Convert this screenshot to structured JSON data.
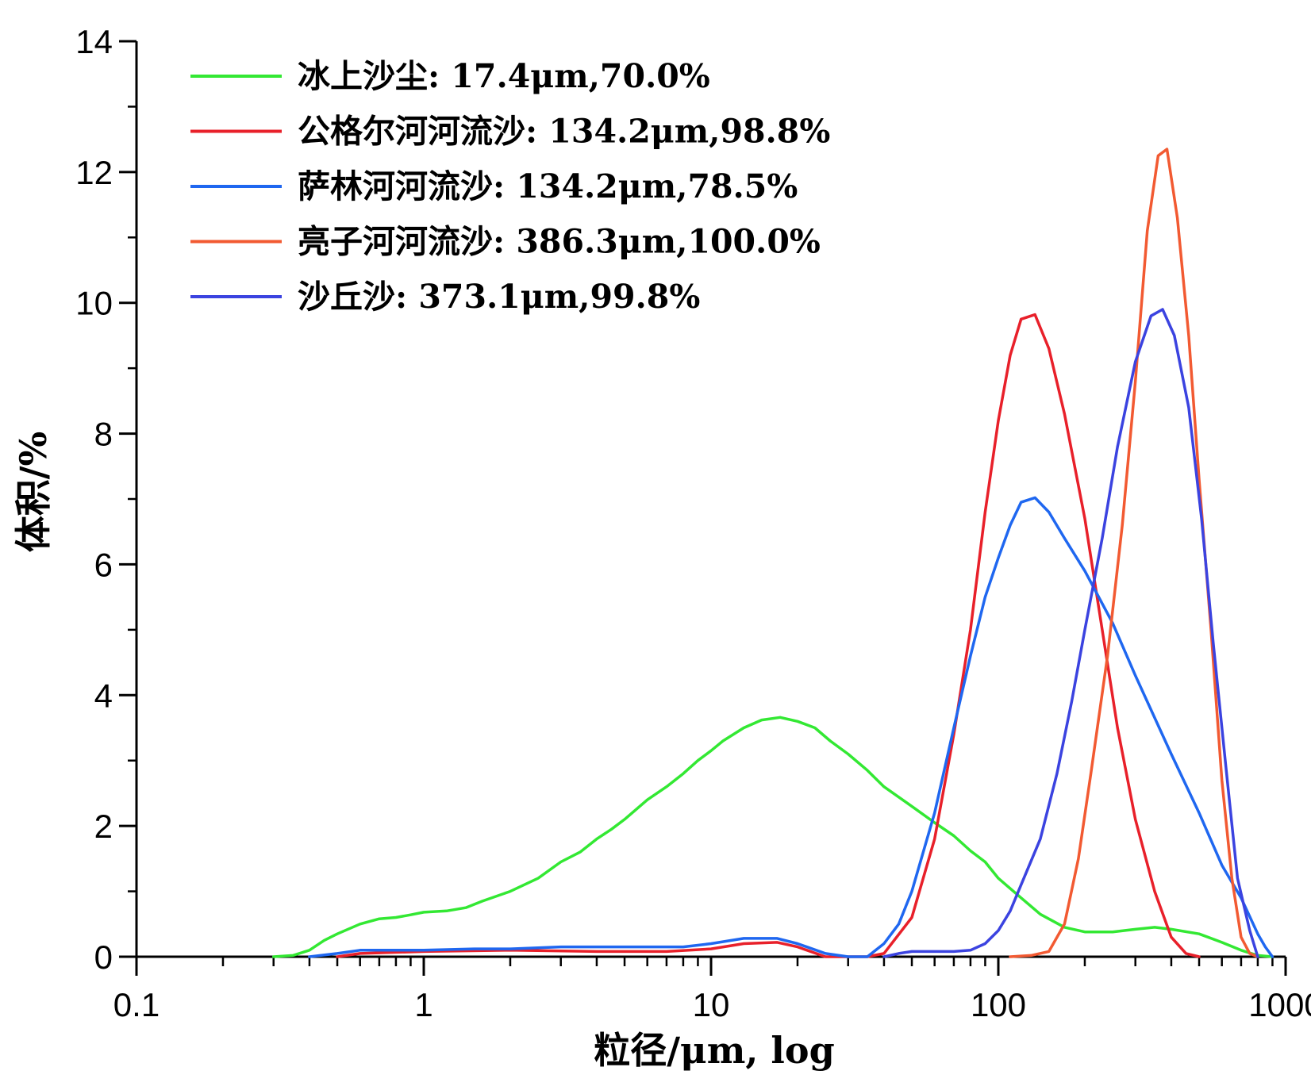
{
  "chart_data": {
    "type": "line",
    "xscale": "log",
    "xlim": [
      0.1,
      1000
    ],
    "ylim": [
      0,
      14
    ],
    "xlabel": "粒径/μm, log",
    "ylabel": "体积/%",
    "xticks": [
      {
        "value": 0.1,
        "label": "0.1"
      },
      {
        "value": 1,
        "label": "1"
      },
      {
        "value": 10,
        "label": "10"
      },
      {
        "value": 100,
        "label": "100"
      },
      {
        "value": 1000,
        "label": "1000"
      }
    ],
    "yticks": [
      {
        "value": 0,
        "label": "0"
      },
      {
        "value": 2,
        "label": "2"
      },
      {
        "value": 4,
        "label": "4"
      },
      {
        "value": 6,
        "label": "6"
      },
      {
        "value": 8,
        "label": "8"
      },
      {
        "value": 10,
        "label": "10"
      },
      {
        "value": 12,
        "label": "12"
      },
      {
        "value": 14,
        "label": "14"
      }
    ],
    "legend_position": "top-left",
    "series": [
      {
        "name": "冰上沙尘: 17.4μm,70.0%",
        "color": "#33e833",
        "points": [
          [
            0.3,
            0
          ],
          [
            0.35,
            0.02
          ],
          [
            0.4,
            0.1
          ],
          [
            0.45,
            0.25
          ],
          [
            0.5,
            0.35
          ],
          [
            0.6,
            0.5
          ],
          [
            0.7,
            0.58
          ],
          [
            0.8,
            0.6
          ],
          [
            0.9,
            0.64
          ],
          [
            1.0,
            0.68
          ],
          [
            1.2,
            0.7
          ],
          [
            1.4,
            0.75
          ],
          [
            1.6,
            0.85
          ],
          [
            2.0,
            1.0
          ],
          [
            2.5,
            1.2
          ],
          [
            3.0,
            1.45
          ],
          [
            3.5,
            1.6
          ],
          [
            4.0,
            1.8
          ],
          [
            4.5,
            1.95
          ],
          [
            5.0,
            2.1
          ],
          [
            6.0,
            2.4
          ],
          [
            7.0,
            2.6
          ],
          [
            8.0,
            2.8
          ],
          [
            9.0,
            3.0
          ],
          [
            10.0,
            3.15
          ],
          [
            11.0,
            3.3
          ],
          [
            13.0,
            3.5
          ],
          [
            15.0,
            3.62
          ],
          [
            17.4,
            3.66
          ],
          [
            20.0,
            3.6
          ],
          [
            23.0,
            3.5
          ],
          [
            26.0,
            3.3
          ],
          [
            30.0,
            3.1
          ],
          [
            35.0,
            2.85
          ],
          [
            40.0,
            2.6
          ],
          [
            50.0,
            2.3
          ],
          [
            60.0,
            2.05
          ],
          [
            70.0,
            1.85
          ],
          [
            80.0,
            1.62
          ],
          [
            90.0,
            1.45
          ],
          [
            100.0,
            1.2
          ],
          [
            120.0,
            0.9
          ],
          [
            140.0,
            0.65
          ],
          [
            170.0,
            0.45
          ],
          [
            200.0,
            0.38
          ],
          [
            250.0,
            0.38
          ],
          [
            300.0,
            0.42
          ],
          [
            350.0,
            0.45
          ],
          [
            400.0,
            0.42
          ],
          [
            500.0,
            0.35
          ],
          [
            600.0,
            0.22
          ],
          [
            700.0,
            0.1
          ],
          [
            800.0,
            0.02
          ],
          [
            900.0,
            0
          ]
        ]
      },
      {
        "name": "公格尔河河流沙: 134.2μm,98.8%",
        "color": "#e8202a",
        "points": [
          [
            0.5,
            0
          ],
          [
            0.6,
            0.05
          ],
          [
            1.0,
            0.08
          ],
          [
            2.0,
            0.1
          ],
          [
            4.0,
            0.08
          ],
          [
            7.0,
            0.08
          ],
          [
            10.0,
            0.12
          ],
          [
            13.0,
            0.2
          ],
          [
            17.0,
            0.22
          ],
          [
            20.0,
            0.15
          ],
          [
            25.0,
            0
          ],
          [
            35.0,
            0
          ],
          [
            40.0,
            0.05
          ],
          [
            50.0,
            0.6
          ],
          [
            60.0,
            1.8
          ],
          [
            70.0,
            3.4
          ],
          [
            80.0,
            5.0
          ],
          [
            90.0,
            6.8
          ],
          [
            100.0,
            8.2
          ],
          [
            110.0,
            9.2
          ],
          [
            120.0,
            9.75
          ],
          [
            134.2,
            9.82
          ],
          [
            150.0,
            9.3
          ],
          [
            170.0,
            8.3
          ],
          [
            200.0,
            6.7
          ],
          [
            230.0,
            5.0
          ],
          [
            260.0,
            3.5
          ],
          [
            300.0,
            2.1
          ],
          [
            350.0,
            1.0
          ],
          [
            400.0,
            0.3
          ],
          [
            450.0,
            0.05
          ],
          [
            500.0,
            0
          ]
        ]
      },
      {
        "name": "萨林河河流沙: 134.2μm,78.5%",
        "color": "#1f67f0",
        "points": [
          [
            0.4,
            0
          ],
          [
            0.5,
            0.05
          ],
          [
            0.6,
            0.1
          ],
          [
            1.0,
            0.1
          ],
          [
            1.5,
            0.12
          ],
          [
            2.0,
            0.12
          ],
          [
            3.0,
            0.15
          ],
          [
            5.0,
            0.15
          ],
          [
            8.0,
            0.15
          ],
          [
            10.0,
            0.2
          ],
          [
            13.0,
            0.28
          ],
          [
            17.0,
            0.28
          ],
          [
            20.0,
            0.2
          ],
          [
            25.0,
            0.05
          ],
          [
            30.0,
            0
          ],
          [
            35.0,
            0
          ],
          [
            40.0,
            0.2
          ],
          [
            45.0,
            0.5
          ],
          [
            50.0,
            1.0
          ],
          [
            60.0,
            2.2
          ],
          [
            70.0,
            3.5
          ],
          [
            80.0,
            4.6
          ],
          [
            90.0,
            5.5
          ],
          [
            100.0,
            6.1
          ],
          [
            110.0,
            6.6
          ],
          [
            120.0,
            6.95
          ],
          [
            134.2,
            7.02
          ],
          [
            150.0,
            6.8
          ],
          [
            170.0,
            6.4
          ],
          [
            200.0,
            5.9
          ],
          [
            250.0,
            5.1
          ],
          [
            300.0,
            4.3
          ],
          [
            400.0,
            3.1
          ],
          [
            500.0,
            2.2
          ],
          [
            600.0,
            1.4
          ],
          [
            700.0,
            0.9
          ],
          [
            800.0,
            0.35
          ],
          [
            850.0,
            0.15
          ],
          [
            900.0,
            0
          ]
        ]
      },
      {
        "name": "亮子河河流沙: 386.3μm,100.0%",
        "color": "#f25a32",
        "points": [
          [
            110.0,
            0
          ],
          [
            130.0,
            0.02
          ],
          [
            150.0,
            0.08
          ],
          [
            170.0,
            0.5
          ],
          [
            190.0,
            1.5
          ],
          [
            210.0,
            2.8
          ],
          [
            240.0,
            4.6
          ],
          [
            270.0,
            6.6
          ],
          [
            300.0,
            8.8
          ],
          [
            330.0,
            11.1
          ],
          [
            360.0,
            12.25
          ],
          [
            386.3,
            12.35
          ],
          [
            420.0,
            11.3
          ],
          [
            460.0,
            9.5
          ],
          [
            500.0,
            7.3
          ],
          [
            550.0,
            5.0
          ],
          [
            600.0,
            2.7
          ],
          [
            650.0,
            1.2
          ],
          [
            700.0,
            0.3
          ],
          [
            750.0,
            0.05
          ],
          [
            800.0,
            0
          ]
        ]
      },
      {
        "name": "沙丘沙: 373.1μm,99.8%",
        "color": "#3b43e0",
        "points": [
          [
            40.0,
            0
          ],
          [
            45.0,
            0.05
          ],
          [
            50.0,
            0.08
          ],
          [
            60.0,
            0.08
          ],
          [
            70.0,
            0.08
          ],
          [
            80.0,
            0.1
          ],
          [
            90.0,
            0.2
          ],
          [
            100.0,
            0.4
          ],
          [
            110.0,
            0.7
          ],
          [
            120.0,
            1.1
          ],
          [
            140.0,
            1.8
          ],
          [
            160.0,
            2.8
          ],
          [
            180.0,
            3.9
          ],
          [
            200.0,
            5.0
          ],
          [
            230.0,
            6.4
          ],
          [
            260.0,
            7.8
          ],
          [
            300.0,
            9.1
          ],
          [
            340.0,
            9.8
          ],
          [
            373.1,
            9.9
          ],
          [
            410.0,
            9.5
          ],
          [
            460.0,
            8.4
          ],
          [
            510.0,
            6.7
          ],
          [
            560.0,
            4.8
          ],
          [
            620.0,
            2.9
          ],
          [
            680.0,
            1.2
          ],
          [
            750.0,
            0.4
          ],
          [
            800.0,
            0
          ]
        ]
      }
    ]
  }
}
